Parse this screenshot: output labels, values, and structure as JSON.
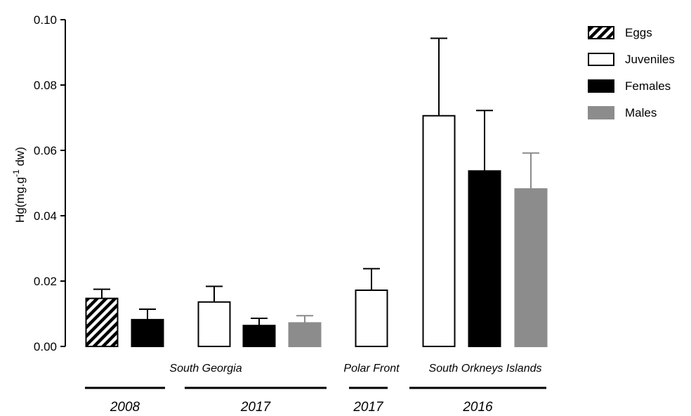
{
  "chart_data": {
    "type": "bar",
    "ylabel": "Hg(mg.g-1 dw)",
    "ylabel_main": "Hg(mg.g",
    "ylabel_sup": "-1",
    "ylabel_tail": " dw)",
    "ylim": [
      0,
      0.1
    ],
    "yticks": [
      {
        "value": 0.0,
        "label": "0.00"
      },
      {
        "value": 0.02,
        "label": "0.02"
      },
      {
        "value": 0.04,
        "label": "0.04"
      },
      {
        "value": 0.06,
        "label": "0.06"
      },
      {
        "value": 0.08,
        "label": "0.08"
      },
      {
        "value": 0.1,
        "label": "0.10"
      }
    ],
    "legend": [
      {
        "name": "Eggs",
        "style": "hatch"
      },
      {
        "name": "Juveniles",
        "style": "white"
      },
      {
        "name": "Females",
        "style": "black"
      },
      {
        "name": "Males",
        "style": "gray"
      }
    ],
    "bars": [
      {
        "series": "Eggs",
        "value": 0.0147,
        "error": 0.0028
      },
      {
        "series": "Females",
        "value": 0.0082,
        "error": 0.0032
      },
      {
        "series": "Juveniles",
        "value": 0.0136,
        "error": 0.0048
      },
      {
        "series": "Females",
        "value": 0.0064,
        "error": 0.0022
      },
      {
        "series": "Males",
        "value": 0.0072,
        "error": 0.0022
      },
      {
        "series": "Juveniles",
        "value": 0.0172,
        "error": 0.0066
      },
      {
        "series": "Juveniles",
        "value": 0.0706,
        "error": 0.0237
      },
      {
        "series": "Females",
        "value": 0.0537,
        "error": 0.0185
      },
      {
        "series": "Males",
        "value": 0.0482,
        "error": 0.011
      }
    ],
    "groups": [
      {
        "label": "South Georgia",
        "bars": [
          0,
          1,
          2,
          3,
          4
        ]
      },
      {
        "label": "Polar Front",
        "bars": [
          5
        ]
      },
      {
        "label": "South Orkneys Islands",
        "bars": [
          6,
          7,
          8
        ]
      }
    ],
    "years": [
      {
        "label": "2008",
        "bars": [
          0,
          1
        ]
      },
      {
        "label": "2017",
        "bars": [
          2,
          3,
          4
        ]
      },
      {
        "label": "2017",
        "bars": [
          5
        ]
      },
      {
        "label": "2016",
        "bars": [
          6,
          7,
          8
        ]
      }
    ],
    "colors": {
      "black": "#000000",
      "gray": "#8c8c8c",
      "white": "#ffffff",
      "stroke": "#000000"
    },
    "grid": false,
    "legend_position": "top-right"
  }
}
